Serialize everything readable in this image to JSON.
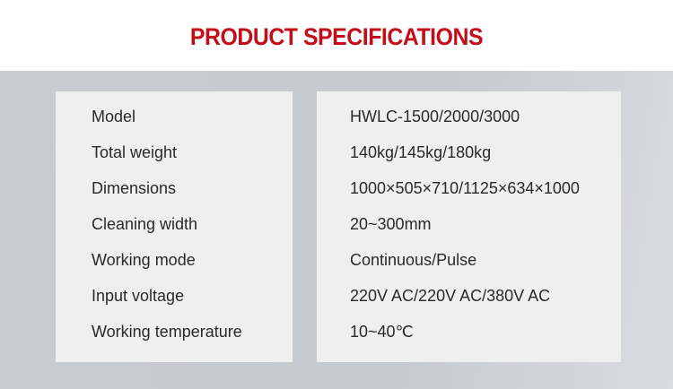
{
  "title": "PRODUCT SPECIFICATIONS",
  "colors": {
    "title": "#c20d1b",
    "panel": "#efefef",
    "background_band": "#c9ccd2"
  },
  "specs": [
    {
      "label": "Model",
      "value": "HWLC-1500/2000/3000"
    },
    {
      "label": "Total weight",
      "value": "140kg/145kg/180kg"
    },
    {
      "label": "Dimensions",
      "value": "1000×505×710/1125×634×1000"
    },
    {
      "label": "Cleaning width",
      "value": "20~300mm"
    },
    {
      "label": "Working mode",
      "value": "Continuous/Pulse"
    },
    {
      "label": "Input voltage",
      "value": "220V AC/220V AC/380V AC"
    },
    {
      "label": "Working temperature",
      "value": "10~40℃"
    }
  ]
}
